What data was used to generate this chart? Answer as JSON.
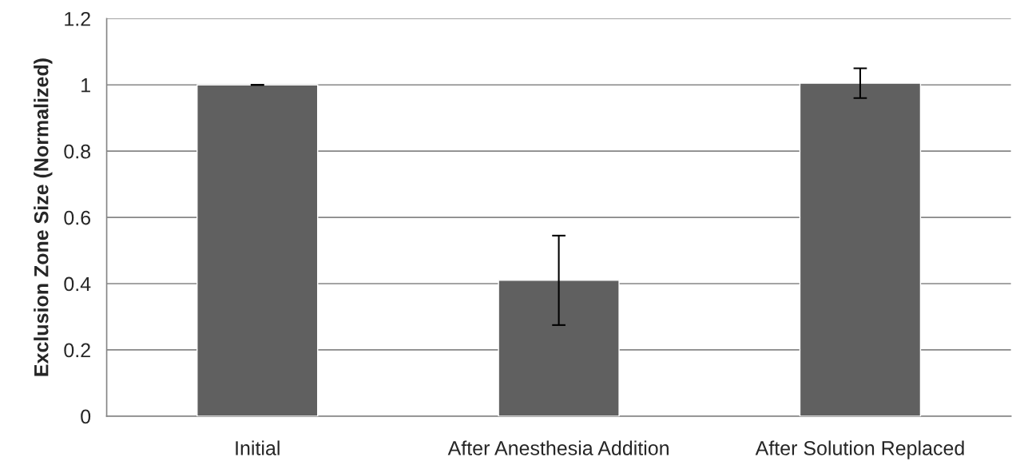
{
  "chart_data": {
    "type": "bar",
    "ylabel": "Exclusion Zone Size (Normalized)",
    "categories": [
      "Initial",
      "After Anesthesia Addition",
      "After Solution Replaced"
    ],
    "values": [
      1.0,
      0.41,
      1.005
    ],
    "errors": [
      0,
      0.135,
      0.045
    ],
    "color": "#606060",
    "ylim": [
      0,
      1.2
    ],
    "yticks": [
      0,
      0.2,
      0.4,
      0.6,
      0.8,
      1,
      1.2
    ],
    "grid": "y"
  }
}
